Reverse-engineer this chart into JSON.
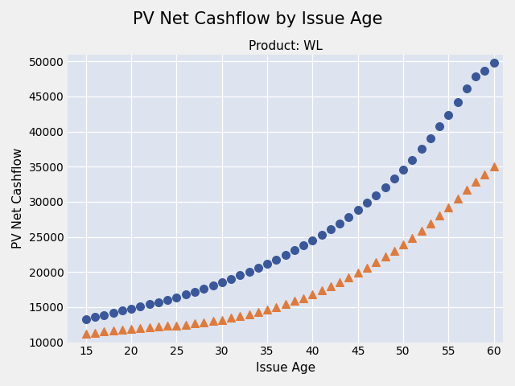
{
  "title": "PV Net Cashflow by Issue Age",
  "subtitle": "Product: WL",
  "xlabel": "Issue Age",
  "ylabel": "PV Net Cashflow",
  "fig_bg_color": "#f0f0f0",
  "plot_bg_color": "#dde3ef",
  "blue_color": "#3a5899",
  "orange_color": "#e07a3a",
  "x_blue": [
    15,
    16,
    17,
    18,
    19,
    20,
    21,
    22,
    23,
    24,
    25,
    26,
    27,
    28,
    29,
    30,
    31,
    32,
    33,
    34,
    35,
    36,
    37,
    38,
    39,
    40,
    41,
    42,
    43,
    44,
    45,
    46,
    47,
    48,
    49,
    50,
    51,
    52,
    53,
    54,
    55,
    56,
    57,
    58,
    59,
    60
  ],
  "y_blue": [
    13300,
    13600,
    13900,
    14200,
    14500,
    14800,
    15100,
    15400,
    15700,
    16050,
    16400,
    16800,
    17200,
    17650,
    18100,
    18550,
    19050,
    19550,
    20050,
    20600,
    21200,
    21800,
    22450,
    23100,
    23800,
    24500,
    25300,
    26100,
    26950,
    27850,
    28800,
    29850,
    30950,
    32100,
    33300,
    34600,
    36000,
    37500,
    39000,
    40700,
    42400,
    44200,
    46100,
    47800,
    48700,
    49800
  ],
  "x_orange": [
    15,
    16,
    17,
    18,
    19,
    20,
    21,
    22,
    23,
    24,
    25,
    26,
    27,
    28,
    29,
    30,
    31,
    32,
    33,
    34,
    35,
    36,
    37,
    38,
    39,
    40,
    41,
    42,
    43,
    44,
    45,
    46,
    47,
    48,
    49,
    50,
    51,
    52,
    53,
    54,
    55,
    56,
    57,
    58,
    59,
    60
  ],
  "y_orange": [
    11200,
    11350,
    11500,
    11650,
    11800,
    11900,
    12000,
    12100,
    12200,
    12300,
    12400,
    12500,
    12650,
    12800,
    13000,
    13200,
    13450,
    13700,
    14000,
    14300,
    14650,
    15000,
    15400,
    15850,
    16300,
    16800,
    17350,
    17950,
    18550,
    19200,
    19900,
    20600,
    21350,
    22150,
    23000,
    23900,
    24850,
    25900,
    26950,
    28050,
    29200,
    30450,
    31700,
    32900,
    33900,
    35000
  ],
  "xlim": [
    13,
    61
  ],
  "ylim": [
    10000,
    51000
  ],
  "yticks": [
    10000,
    15000,
    20000,
    25000,
    30000,
    35000,
    40000,
    45000,
    50000
  ],
  "xticks": [
    15,
    20,
    25,
    30,
    35,
    40,
    45,
    50,
    55,
    60
  ],
  "title_fontsize": 15,
  "subtitle_fontsize": 11,
  "label_fontsize": 11,
  "tick_fontsize": 10,
  "marker_size": 48
}
